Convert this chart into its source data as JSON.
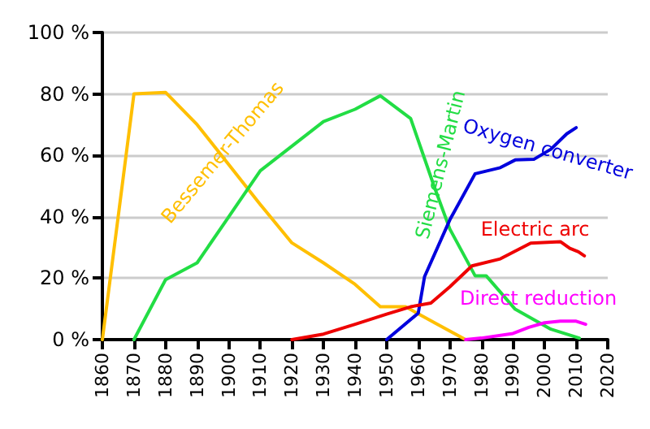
{
  "chart_data": {
    "type": "line",
    "xlim": [
      1860,
      2020
    ],
    "xticks": [
      1860,
      1870,
      1880,
      1890,
      1900,
      1910,
      1920,
      1930,
      1940,
      1950,
      1960,
      1970,
      1980,
      1990,
      2000,
      2010,
      2020
    ],
    "ylim": [
      0,
      100
    ],
    "yticks": [
      {
        "value": 0,
        "label": "0 %"
      },
      {
        "value": 20,
        "label": "20 %"
      },
      {
        "value": 40,
        "label": "40 %"
      },
      {
        "value": 60,
        "label": "60 %"
      },
      {
        "value": 80,
        "label": "80 %"
      },
      {
        "value": 100,
        "label": "100 %"
      }
    ],
    "grid": "y",
    "legend": false,
    "marker": "none",
    "line_style": "solid",
    "series": [
      {
        "name": "Bessemer-Thomas",
        "color": "#ffbf00",
        "x": [
          1860,
          1870,
          1880,
          1890,
          1900,
          1910,
          1920,
          1930,
          1940,
          1948,
          1956,
          1966,
          1975
        ],
        "values": [
          0,
          80,
          80.5,
          70,
          57,
          44,
          31.5,
          25,
          18,
          10.7,
          10.7,
          5,
          0
        ]
      },
      {
        "name": "Siemens-Martin",
        "color": "#22dd44",
        "x": [
          1870,
          1880,
          1890,
          1900,
          1910,
          1920,
          1930,
          1940,
          1948,
          1957.6,
          1965,
          1970,
          1978,
          1981.5,
          1990.7,
          2002,
          2011
        ],
        "values": [
          0,
          19.5,
          25,
          40,
          55,
          63,
          71,
          75,
          79.4,
          72,
          50,
          36,
          20.8,
          20.8,
          9.9,
          3.4,
          0.5
        ]
      },
      {
        "name": "Oxygen converter",
        "color": "#0000dd",
        "x": [
          1950,
          1960,
          1962,
          1970,
          1978,
          1986,
          1990.7,
          1996.6,
          2002,
          2007,
          2010
        ],
        "values": [
          0,
          8.6,
          20.5,
          39,
          54,
          56,
          58.5,
          58.7,
          62,
          67,
          69
        ]
      },
      {
        "name": "Electric arc",
        "color": "#ee0000",
        "x": [
          1920,
          1930,
          1940,
          1950,
          1957.6,
          1964,
          1970,
          1977,
          1986,
          1995.6,
          2005,
          2008,
          2010.7,
          2012.6
        ],
        "values": [
          0,
          1.8,
          5,
          8.3,
          10.7,
          11.9,
          17.2,
          24,
          26.3,
          31.4,
          31.9,
          29.7,
          28.6,
          27.3
        ]
      },
      {
        "name": "Direct reduction",
        "color": "#ff00ff",
        "x": [
          1975,
          1980,
          1990,
          1995,
          2000,
          2005,
          2010,
          2013
        ],
        "values": [
          0,
          0.5,
          2,
          4,
          5.5,
          6,
          6,
          5
        ]
      }
    ]
  }
}
